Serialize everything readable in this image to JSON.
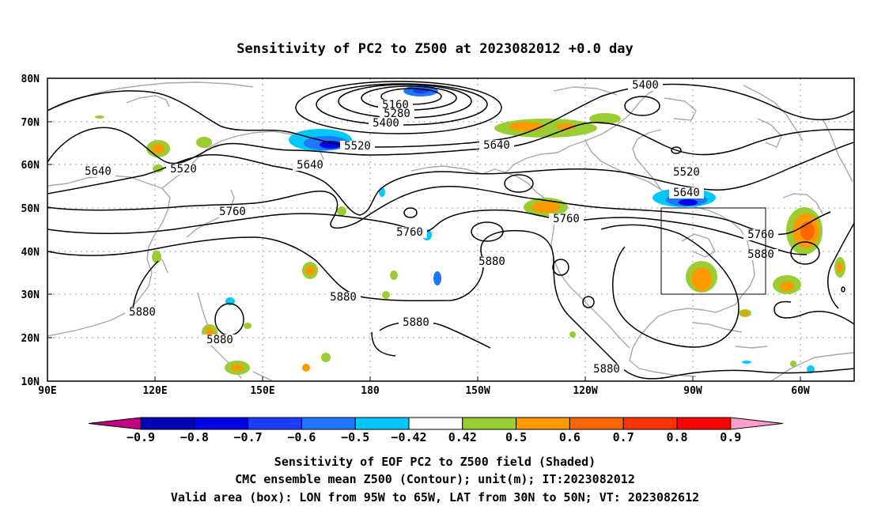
{
  "title": "Sensitivity of PC2 to Z500 at 2023082012 +0.0 day",
  "map": {
    "lat_labels": [
      "80N",
      "70N",
      "60N",
      "50N",
      "40N",
      "30N",
      "20N",
      "10N"
    ],
    "lon_labels": [
      "90E",
      "120E",
      "150E",
      "180",
      "150W",
      "120W",
      "90W",
      "60W"
    ],
    "lat_range": [
      10,
      80
    ],
    "lon_range_deg_east": [
      90,
      315
    ],
    "contour_labels": [
      "5160",
      "5280",
      "5400",
      "5400",
      "5520",
      "5520",
      "5640",
      "5640",
      "5640",
      "5520",
      "5640",
      "5760",
      "5760",
      "5760",
      "5760",
      "5880",
      "5880",
      "5880",
      "5880",
      "5880",
      "5880",
      "5880"
    ],
    "valid_box": {
      "lon_west": "95W",
      "lon_east": "65W",
      "lat_south": "30N",
      "lat_north": "50N"
    }
  },
  "colorbar": {
    "labels": [
      "-0.9",
      "-0.8",
      "-0.7",
      "-0.6",
      "-0.5",
      "-0.42",
      "0.42",
      "0.5",
      "0.6",
      "0.7",
      "0.8",
      "0.9"
    ],
    "colors": [
      "#c0007f",
      "#0000b4",
      "#0000e6",
      "#1c3cff",
      "#1e78ff",
      "#00c8ff",
      "#ffffff",
      "#9acd32",
      "#ff9900",
      "#ff6600",
      "#ff3300",
      "#ff0000",
      "#ff9ec8"
    ]
  },
  "footer": {
    "line1": "Sensitivity of EOF PC2 to Z500 field (Shaded)",
    "line2": "CMC ensemble mean Z500 (Contour); unit(m); IT:2023082012",
    "line3": "Valid area (box): LON from 95W to 65W, LAT from 30N to 50N; VT: 2023082612"
  }
}
